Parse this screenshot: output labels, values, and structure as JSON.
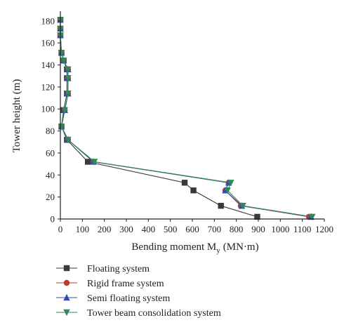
{
  "chart_data": {
    "type": "line",
    "xlabel": "Bending moment M",
    "xlabel_sub": "y",
    "xlabel_unit": "(MN·m)",
    "ylabel": "Tower height (m)",
    "xlim": [
      0,
      1200
    ],
    "ylim": [
      0,
      185
    ],
    "x_ticks": [
      "0",
      "100",
      "200",
      "300",
      "400",
      "500",
      "600",
      "700",
      "800",
      "900",
      "1000",
      "1100",
      "1200"
    ],
    "y_ticks": [
      "0",
      "20",
      "40",
      "60",
      "80",
      "100",
      "120",
      "140",
      "160",
      "180"
    ],
    "legend_position": "below",
    "series": [
      {
        "name": "Floating system",
        "color": "#3a3a3a",
        "marker": "square",
        "points": [
          [
            0,
            181
          ],
          [
            0,
            173
          ],
          [
            0,
            167
          ],
          [
            5,
            151
          ],
          [
            15,
            144
          ],
          [
            30,
            136
          ],
          [
            30,
            128
          ],
          [
            30,
            114
          ],
          [
            15,
            99
          ],
          [
            5,
            84
          ],
          [
            30,
            72
          ],
          [
            125,
            52
          ],
          [
            565,
            33
          ],
          [
            605,
            26
          ],
          [
            730,
            12
          ],
          [
            895,
            2
          ]
        ]
      },
      {
        "name": "Rigid frame system",
        "color": "#c0392b",
        "marker": "circle",
        "points": [
          [
            0,
            181
          ],
          [
            0,
            173
          ],
          [
            0,
            167
          ],
          [
            5,
            151
          ],
          [
            15,
            144
          ],
          [
            35,
            136
          ],
          [
            35,
            128
          ],
          [
            35,
            114
          ],
          [
            20,
            99
          ],
          [
            5,
            84
          ],
          [
            35,
            72
          ],
          [
            150,
            52
          ],
          [
            765,
            33
          ],
          [
            750,
            26
          ],
          [
            820,
            12
          ],
          [
            1130,
            2
          ]
        ]
      },
      {
        "name": "Semi floating system",
        "color": "#2f4fb0",
        "marker": "triangle-up",
        "points": [
          [
            0,
            181
          ],
          [
            0,
            173
          ],
          [
            0,
            167
          ],
          [
            5,
            151
          ],
          [
            15,
            144
          ],
          [
            35,
            136
          ],
          [
            35,
            128
          ],
          [
            35,
            114
          ],
          [
            20,
            99
          ],
          [
            5,
            84
          ],
          [
            35,
            72
          ],
          [
            150,
            52
          ],
          [
            765,
            33
          ],
          [
            750,
            26
          ],
          [
            825,
            12
          ],
          [
            1140,
            2
          ]
        ]
      },
      {
        "name": "Tower beam consolidation system",
        "color": "#2e8b57",
        "marker": "triangle-down",
        "points": [
          [
            0,
            181
          ],
          [
            0,
            173
          ],
          [
            0,
            167
          ],
          [
            5,
            151
          ],
          [
            15,
            144
          ],
          [
            35,
            136
          ],
          [
            35,
            128
          ],
          [
            35,
            114
          ],
          [
            20,
            99
          ],
          [
            5,
            84
          ],
          [
            35,
            72
          ],
          [
            155,
            52
          ],
          [
            775,
            33
          ],
          [
            760,
            26
          ],
          [
            830,
            12
          ],
          [
            1145,
            2
          ]
        ]
      }
    ]
  }
}
